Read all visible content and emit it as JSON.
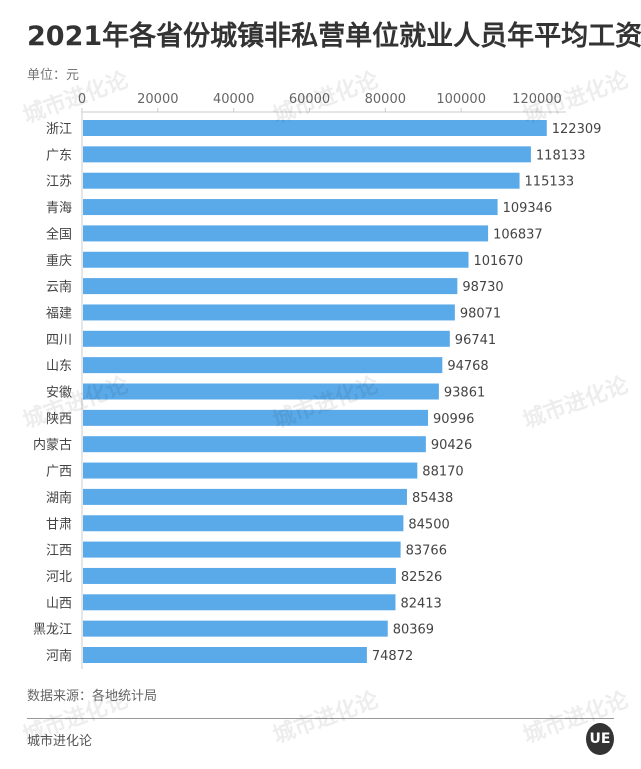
{
  "chart_data": {
    "type": "bar",
    "orientation": "horizontal",
    "title": "2021年各省份城镇非私营单位就业人员年平均工资",
    "unit_label": "单位：元",
    "categories": [
      "浙江",
      "广东",
      "江苏",
      "青海",
      "全国",
      "重庆",
      "云南",
      "福建",
      "四川",
      "山东",
      "安徽",
      "陕西",
      "内蒙古",
      "广西",
      "湖南",
      "甘肃",
      "江西",
      "河北",
      "山西",
      "黑龙江",
      "河南"
    ],
    "values": [
      122309,
      118133,
      115133,
      109346,
      106837,
      101670,
      98730,
      98071,
      96741,
      94768,
      93861,
      90996,
      90426,
      88170,
      85438,
      84500,
      83766,
      82526,
      82413,
      80369,
      74872
    ],
    "xlim": [
      0,
      120000
    ],
    "ticks": [
      0,
      20000,
      40000,
      60000,
      80000,
      100000,
      120000
    ],
    "axis_position": "top",
    "grid": false,
    "data_labels": true,
    "bar_color": "#5aaaea"
  },
  "footer": {
    "source": "数据来源：各地统计局",
    "brand": "城市进化论",
    "logo": "UE",
    "watermark": "城市进化论"
  }
}
